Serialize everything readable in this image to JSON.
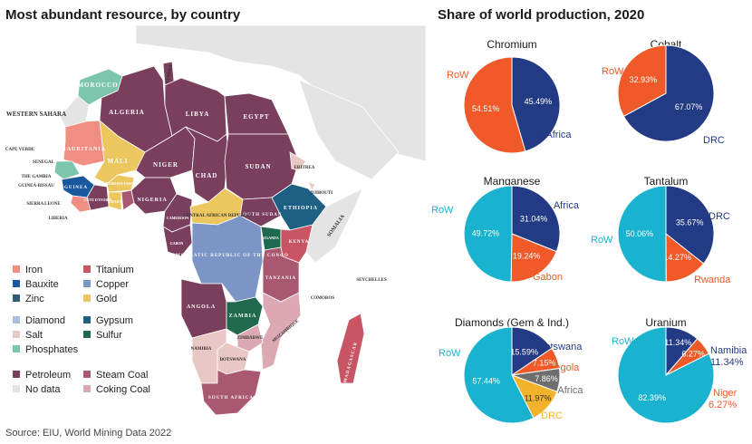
{
  "titles": {
    "map": "Most abundant resource, by country",
    "pies": "Share of world production, 2020"
  },
  "source": "Source: EIU, World Mining Data 2022",
  "colors": {
    "iron": "#f08e83",
    "titanium": "#c95463",
    "bauxite": "#19589e",
    "copper": "#7b95c6",
    "zinc": "#2d5d73",
    "gold": "#ecc65f",
    "diamond": "#a5c1e0",
    "gypsum": "#1e5f84",
    "salt": "#e9c7c4",
    "sulfur": "#1f6a4f",
    "phosphates": "#7ec5ad",
    "petroleum": "#7a3f5c",
    "steam_coal": "#a8596f",
    "no_data": "#e4e4e4",
    "coking_coal": "#dca8b3",
    "pie_navy": "#233a84",
    "pie_orange": "#f05a29",
    "pie_cyan": "#1ab3cf",
    "pie_gray": "#6e6e6e",
    "pie_yellow": "#f2b32b",
    "ocean_land": "#e4e4e4"
  },
  "legend": [
    {
      "label": "Iron",
      "color_key": "iron"
    },
    {
      "label": "Titanium",
      "color_key": "titanium"
    },
    {
      "label": "Bauxite",
      "color_key": "bauxite"
    },
    {
      "label": "Copper",
      "color_key": "copper"
    },
    {
      "label": "Zinc",
      "color_key": "zinc"
    },
    {
      "label": "Gold",
      "color_key": "gold"
    },
    {
      "label": "Diamond",
      "color_key": "diamond"
    },
    {
      "label": "Gypsum",
      "color_key": "gypsum"
    },
    {
      "label": "Salt",
      "color_key": "salt"
    },
    {
      "label": "Sulfur",
      "color_key": "sulfur"
    },
    {
      "label": "Phosphates",
      "color_key": "phosphates"
    },
    {
      "label": "Petroleum",
      "color_key": "petroleum"
    },
    {
      "label": "Steam Coal",
      "color_key": "steam_coal"
    },
    {
      "label": "No data",
      "color_key": "no_data"
    },
    {
      "label": "Coking Coal",
      "color_key": "coking_coal"
    }
  ],
  "map_labels": {
    "morocco": "MOROCCO",
    "western_sahara": "WESTERN SAHARA",
    "algeria": "ALGERIA",
    "libya": "LIBYA",
    "egypt": "EGYPT",
    "mauritania": "MAURITANIA",
    "mali": "MALI",
    "niger": "NIGER",
    "chad": "CHAD",
    "sudan": "SUDAN",
    "nigeria": "NIGERIA",
    "ethiopia": "ETHIOPIA",
    "south_sudan": "SOUTH SUDAN",
    "car": "CENTRAL AFRICAN REPUBLIC",
    "drc": "DEMOCRATIC REPUBLIC OF THE CONGO",
    "kenya": "KENYA",
    "tanzania": "TANZANIA",
    "somalia": "SOMALIA",
    "angola": "ANGOLA",
    "zambia": "ZAMBIA",
    "namibia": "NAMIBIA",
    "botswana": "BOTSWANA",
    "south_africa": "SOUTH AFRICA",
    "madagascar": "MADAGASCAR",
    "mozambique": "MOZAMBIQUE",
    "zimbabwe": "ZIMBABWE",
    "tunisia": "TUNISIA",
    "eritrea": "ERITREA",
    "djibouti": "DJIBOUTI",
    "cape_verde": "CAPE VERDE",
    "senegal": "SENEGAL",
    "gambia": "THE GAMBIA",
    "guinea_bissau": "GUINEA-BISSAU",
    "guinea": "GUINEA",
    "sierra_leone": "SIERRA LEONE",
    "liberia": "LIBERIA",
    "cote_divoire": "CÔTE D'IVOIRE",
    "burkina_faso": "BURKINA FASO",
    "ghana": "GHANA",
    "cameroon": "CAMEROON",
    "gabon": "GABON",
    "uganda": "UGANDA",
    "comoros": "COMOROS",
    "seychelles": "SEYCHELLES"
  },
  "chart_data": [
    {
      "type": "pie",
      "title": "Chromium",
      "slices": [
        {
          "label": "S.Africa",
          "value": 45.49,
          "pct_text": "45.49%",
          "color_key": "pie_navy",
          "label_color": "#233a84"
        },
        {
          "label": "RoW",
          "value": 54.51,
          "pct_text": "54.51%",
          "color_key": "pie_orange",
          "label_color": "#f05a29"
        }
      ]
    },
    {
      "type": "pie",
      "title": "Cobalt",
      "slices": [
        {
          "label": "DRC",
          "value": 67.07,
          "pct_text": "67.07%",
          "color_key": "pie_navy",
          "label_color": "#233a84"
        },
        {
          "label": "RoW",
          "value": 32.93,
          "pct_text": "32.93%",
          "color_key": "pie_orange",
          "label_color": "#f05a29"
        }
      ]
    },
    {
      "type": "pie",
      "title": "Manganese",
      "slices": [
        {
          "label": "S. Africa",
          "value": 31.04,
          "pct_text": "31.04%",
          "color_key": "pie_navy",
          "label_color": "#233a84"
        },
        {
          "label": "Gabon",
          "value": 19.24,
          "pct_text": "19.24%",
          "color_key": "pie_orange",
          "label_color": "#f05a29"
        },
        {
          "label": "RoW",
          "value": 49.72,
          "pct_text": "49.72%",
          "color_key": "pie_cyan",
          "label_color": "#1ab3cf"
        }
      ]
    },
    {
      "type": "pie",
      "title": "Tantalum",
      "slices": [
        {
          "label": "DRC",
          "value": 35.67,
          "pct_text": "35.67%",
          "color_key": "pie_navy",
          "label_color": "#233a84"
        },
        {
          "label": "Rwanda",
          "value": 14.27,
          "pct_text": "14.27%",
          "color_key": "pie_orange",
          "label_color": "#f05a29"
        },
        {
          "label": "RoW",
          "value": 50.06,
          "pct_text": "50.06%",
          "color_key": "pie_cyan",
          "label_color": "#1ab3cf"
        }
      ]
    },
    {
      "type": "pie",
      "title": "Diamonds (Gem & Ind.)",
      "slices": [
        {
          "label": "Botswana",
          "value": 15.59,
          "pct_text": "15.59%",
          "color_key": "pie_navy",
          "label_color": "#233a84"
        },
        {
          "label": "Angola",
          "value": 7.15,
          "pct_text": "7.15%",
          "color_key": "pie_orange",
          "label_color": "#f05a29"
        },
        {
          "label": "S.Africa",
          "value": 7.86,
          "pct_text": "7.86%",
          "color_key": "pie_gray",
          "label_color": "#6e6e6e"
        },
        {
          "label": "DRC",
          "value": 11.97,
          "pct_text": "11.97%",
          "color_key": "pie_yellow",
          "label_color": "#f2b32b"
        },
        {
          "label": "RoW",
          "value": 57.44,
          "pct_text": "57.44%",
          "color_key": "pie_cyan",
          "label_color": "#1ab3cf"
        }
      ]
    },
    {
      "type": "pie",
      "title": "Uranium",
      "slices": [
        {
          "label": "Namibia",
          "value": 11.34,
          "pct_text": "11.34%",
          "color_key": "pie_navy",
          "label_color": "#233a84"
        },
        {
          "label": "Niger",
          "value": 6.27,
          "pct_text": "6.27%",
          "color_key": "pie_orange",
          "label_color": "#f05a29"
        },
        {
          "label": "RoW",
          "value": 82.39,
          "pct_text": "82.39%",
          "color_key": "pie_cyan",
          "label_color": "#1ab3cf"
        }
      ]
    }
  ]
}
